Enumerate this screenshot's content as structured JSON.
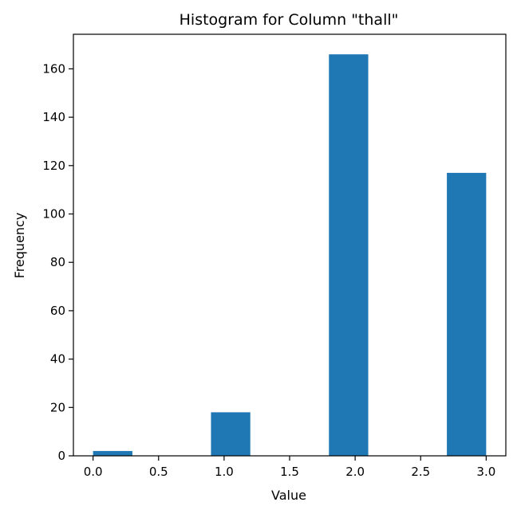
{
  "chart_data": {
    "type": "bar",
    "title": "Histogram for Column \"thall\"",
    "xlabel": "Value",
    "ylabel": "Frequency",
    "bins": [
      {
        "start": 0.0,
        "end": 0.3,
        "value": 2
      },
      {
        "start": 0.3,
        "end": 0.6,
        "value": 0
      },
      {
        "start": 0.6,
        "end": 0.9,
        "value": 0
      },
      {
        "start": 0.9,
        "end": 1.2,
        "value": 18
      },
      {
        "start": 1.2,
        "end": 1.5,
        "value": 0
      },
      {
        "start": 1.5,
        "end": 1.8,
        "value": 0
      },
      {
        "start": 1.8,
        "end": 2.1,
        "value": 166
      },
      {
        "start": 2.1,
        "end": 2.4,
        "value": 0
      },
      {
        "start": 2.4,
        "end": 2.7,
        "value": 0
      },
      {
        "start": 2.7,
        "end": 3.0,
        "value": 117
      }
    ],
    "xlim": [
      -0.15,
      3.15
    ],
    "ylim": [
      0,
      174.3
    ],
    "xticks": [
      0.0,
      0.5,
      1.0,
      1.5,
      2.0,
      2.5,
      3.0
    ],
    "xtick_labels": [
      "0.0",
      "0.5",
      "1.0",
      "1.5",
      "2.0",
      "2.5",
      "3.0"
    ],
    "yticks": [
      0,
      20,
      40,
      60,
      80,
      100,
      120,
      140,
      160
    ],
    "ytick_labels": [
      "0",
      "20",
      "40",
      "60",
      "80",
      "100",
      "120",
      "140",
      "160"
    ],
    "bar_color": "#1f77b4",
    "grid": false
  }
}
